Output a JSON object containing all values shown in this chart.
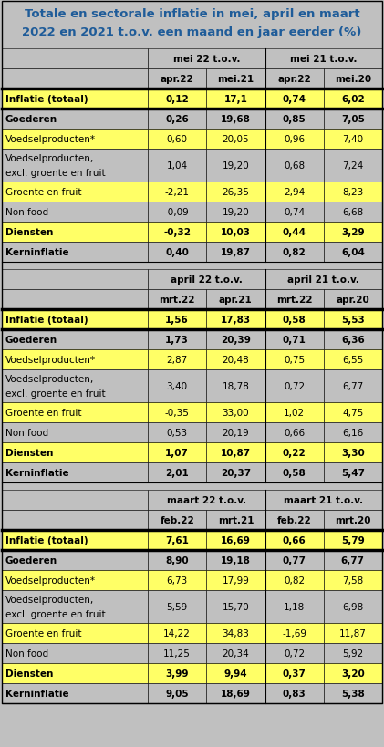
{
  "title_line1": "Totale en sectorale inflatie in mei, april en maart",
  "title_line2": "2022 en 2021 t.o.v. een maand en jaar eerder (%)",
  "title_color": "#1F5C99",
  "bg_color": "#C0C0C0",
  "white_color": "#FFFFFF",
  "yellow_color": "#FFFF66",
  "tables": [
    {
      "col_header1": "mei 22 t.o.v.",
      "col_header2": "mei 21 t.o.v.",
      "sub_header": [
        "apr.22",
        "mei.21",
        "apr.22",
        "mei.20"
      ],
      "rows": [
        {
          "label": "Inflatie (totaal)",
          "bold": true,
          "yellow": true,
          "vals": [
            "0,12",
            "17,1",
            "0,74",
            "6,02"
          ]
        },
        {
          "label": "Goederen",
          "bold": true,
          "yellow": false,
          "vals": [
            "0,26",
            "19,68",
            "0,85",
            "7,05"
          ]
        },
        {
          "label": "Voedselproducten*",
          "bold": false,
          "yellow": true,
          "vals": [
            "0,60",
            "20,05",
            "0,96",
            "7,40"
          ]
        },
        {
          "label": "Voedselproducten,\nexcl. groente en fruit",
          "bold": false,
          "yellow": false,
          "vals": [
            "1,04",
            "19,20",
            "0,68",
            "7,24"
          ]
        },
        {
          "label": "Groente en fruit",
          "bold": false,
          "yellow": true,
          "vals": [
            "-2,21",
            "26,35",
            "2,94",
            "8,23"
          ]
        },
        {
          "label": "Non food",
          "bold": false,
          "yellow": false,
          "vals": [
            "-0,09",
            "19,20",
            "0,74",
            "6,68"
          ]
        },
        {
          "label": "Diensten",
          "bold": true,
          "yellow": true,
          "vals": [
            "-0,32",
            "10,03",
            "0,44",
            "3,29"
          ]
        },
        {
          "label": "Kerninflatie",
          "bold": true,
          "yellow": false,
          "vals": [
            "0,40",
            "19,87",
            "0,82",
            "6,04"
          ]
        }
      ]
    },
    {
      "col_header1": "april 22 t.o.v.",
      "col_header2": "april 21 t.o.v.",
      "sub_header": [
        "mrt.22",
        "apr.21",
        "mrt.22",
        "apr.20"
      ],
      "rows": [
        {
          "label": "Inflatie (totaal)",
          "bold": true,
          "yellow": true,
          "vals": [
            "1,56",
            "17,83",
            "0,58",
            "5,53"
          ]
        },
        {
          "label": "Goederen",
          "bold": true,
          "yellow": false,
          "vals": [
            "1,73",
            "20,39",
            "0,71",
            "6,36"
          ]
        },
        {
          "label": "Voedselproducten*",
          "bold": false,
          "yellow": true,
          "vals": [
            "2,87",
            "20,48",
            "0,75",
            "6,55"
          ]
        },
        {
          "label": "Voedselproducten,\nexcl. groente en fruit",
          "bold": false,
          "yellow": false,
          "vals": [
            "3,40",
            "18,78",
            "0,72",
            "6,77"
          ]
        },
        {
          "label": "Groente en fruit",
          "bold": false,
          "yellow": true,
          "vals": [
            "-0,35",
            "33,00",
            "1,02",
            "4,75"
          ]
        },
        {
          "label": "Non food",
          "bold": false,
          "yellow": false,
          "vals": [
            "0,53",
            "20,19",
            "0,66",
            "6,16"
          ]
        },
        {
          "label": "Diensten",
          "bold": true,
          "yellow": true,
          "vals": [
            "1,07",
            "10,87",
            "0,22",
            "3,30"
          ]
        },
        {
          "label": "Kerninflatie",
          "bold": true,
          "yellow": false,
          "vals": [
            "2,01",
            "20,37",
            "0,58",
            "5,47"
          ]
        }
      ]
    },
    {
      "col_header1": "maart 22 t.o.v.",
      "col_header2": "maart 21 t.o.v.",
      "sub_header": [
        "feb.22",
        "mrt.21",
        "feb.22",
        "mrt.20"
      ],
      "rows": [
        {
          "label": "Inflatie (totaal)",
          "bold": true,
          "yellow": true,
          "vals": [
            "7,61",
            "16,69",
            "0,66",
            "5,79"
          ]
        },
        {
          "label": "Goederen",
          "bold": true,
          "yellow": false,
          "vals": [
            "8,90",
            "19,18",
            "0,77",
            "6,77"
          ]
        },
        {
          "label": "Voedselproducten*",
          "bold": false,
          "yellow": true,
          "vals": [
            "6,73",
            "17,99",
            "0,82",
            "7,58"
          ]
        },
        {
          "label": "Voedselproducten,\nexcl. groente en fruit",
          "bold": false,
          "yellow": false,
          "vals": [
            "5,59",
            "15,70",
            "1,18",
            "6,98"
          ]
        },
        {
          "label": "Groente en fruit",
          "bold": false,
          "yellow": true,
          "vals": [
            "14,22",
            "34,83",
            "-1,69",
            "11,87"
          ]
        },
        {
          "label": "Non food",
          "bold": false,
          "yellow": false,
          "vals": [
            "11,25",
            "20,34",
            "0,72",
            "5,92"
          ]
        },
        {
          "label": "Diensten",
          "bold": true,
          "yellow": true,
          "vals": [
            "3,99",
            "9,94",
            "0,37",
            "3,20"
          ]
        },
        {
          "label": "Kerninflatie",
          "bold": true,
          "yellow": false,
          "vals": [
            "9,05",
            "18,69",
            "0,83",
            "5,38"
          ]
        }
      ]
    }
  ]
}
